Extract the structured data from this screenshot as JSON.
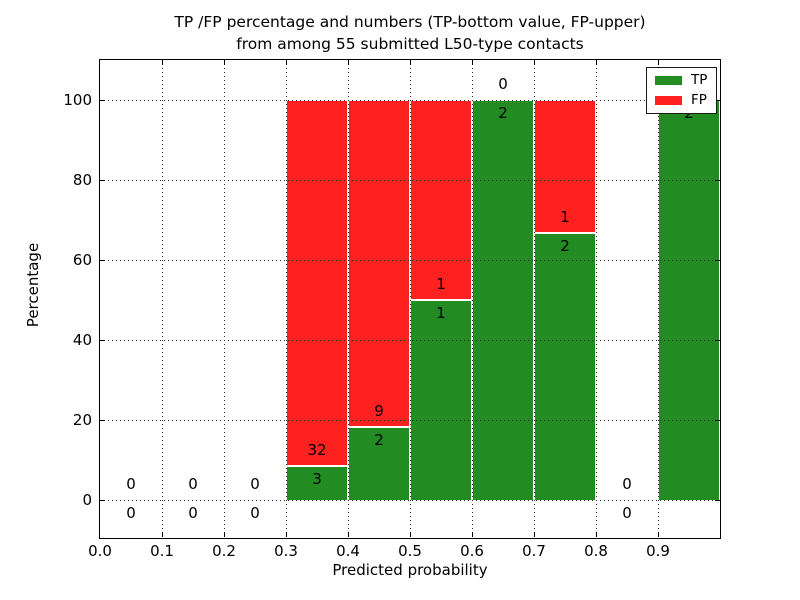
{
  "figure": {
    "title_line1": "TP /FP percentage and numbers (TP-bottom value, FP-upper)",
    "title_line2": "from among 55 submitted L50-type contacts"
  },
  "chart_data": {
    "type": "bar",
    "stacked": true,
    "normalized_to_100_percent": true,
    "title": "TP /FP percentage and numbers (TP-bottom value, FP-upper)\nfrom among 55 submitted L50-type contacts",
    "xlabel": "Predicted probability",
    "ylabel": "Percentage",
    "total_contacts": 55,
    "bins": {
      "left_edges": [
        0.0,
        0.1,
        0.2,
        0.3,
        0.4,
        0.5,
        0.6,
        0.7,
        0.8,
        0.9
      ],
      "width": 0.1
    },
    "series": [
      {
        "name": "TP",
        "color": "#228b22",
        "counts": [
          0,
          0,
          0,
          3,
          2,
          1,
          2,
          2,
          0,
          2
        ],
        "percent": [
          0,
          0,
          0,
          8.6,
          18.2,
          50,
          100,
          66.7,
          0,
          100
        ]
      },
      {
        "name": "FP",
        "color": "#ff2020",
        "counts": [
          0,
          0,
          0,
          32,
          9,
          1,
          0,
          1,
          0,
          0
        ],
        "percent": [
          0,
          0,
          0,
          91.4,
          81.8,
          50,
          0,
          33.3,
          0,
          0
        ]
      }
    ],
    "annotation_rule": "FP count printed above each green/red boundary, TP count below it",
    "xtick_labels": [
      "0.0",
      "0.1",
      "0.2",
      "0.3",
      "0.4",
      "0.5",
      "0.6",
      "0.7",
      "0.8",
      "0.9"
    ],
    "ytick_labels": [
      "0",
      "20",
      "40",
      "60",
      "80",
      "100"
    ],
    "ytick_values": [
      0,
      20,
      40,
      60,
      80,
      100
    ],
    "xlim": [
      0.0,
      1.0
    ],
    "ylim": [
      -9.5,
      110
    ],
    "grid": "dotted",
    "legend": {
      "position": "upper right",
      "entries": [
        "TP",
        "FP"
      ]
    }
  }
}
